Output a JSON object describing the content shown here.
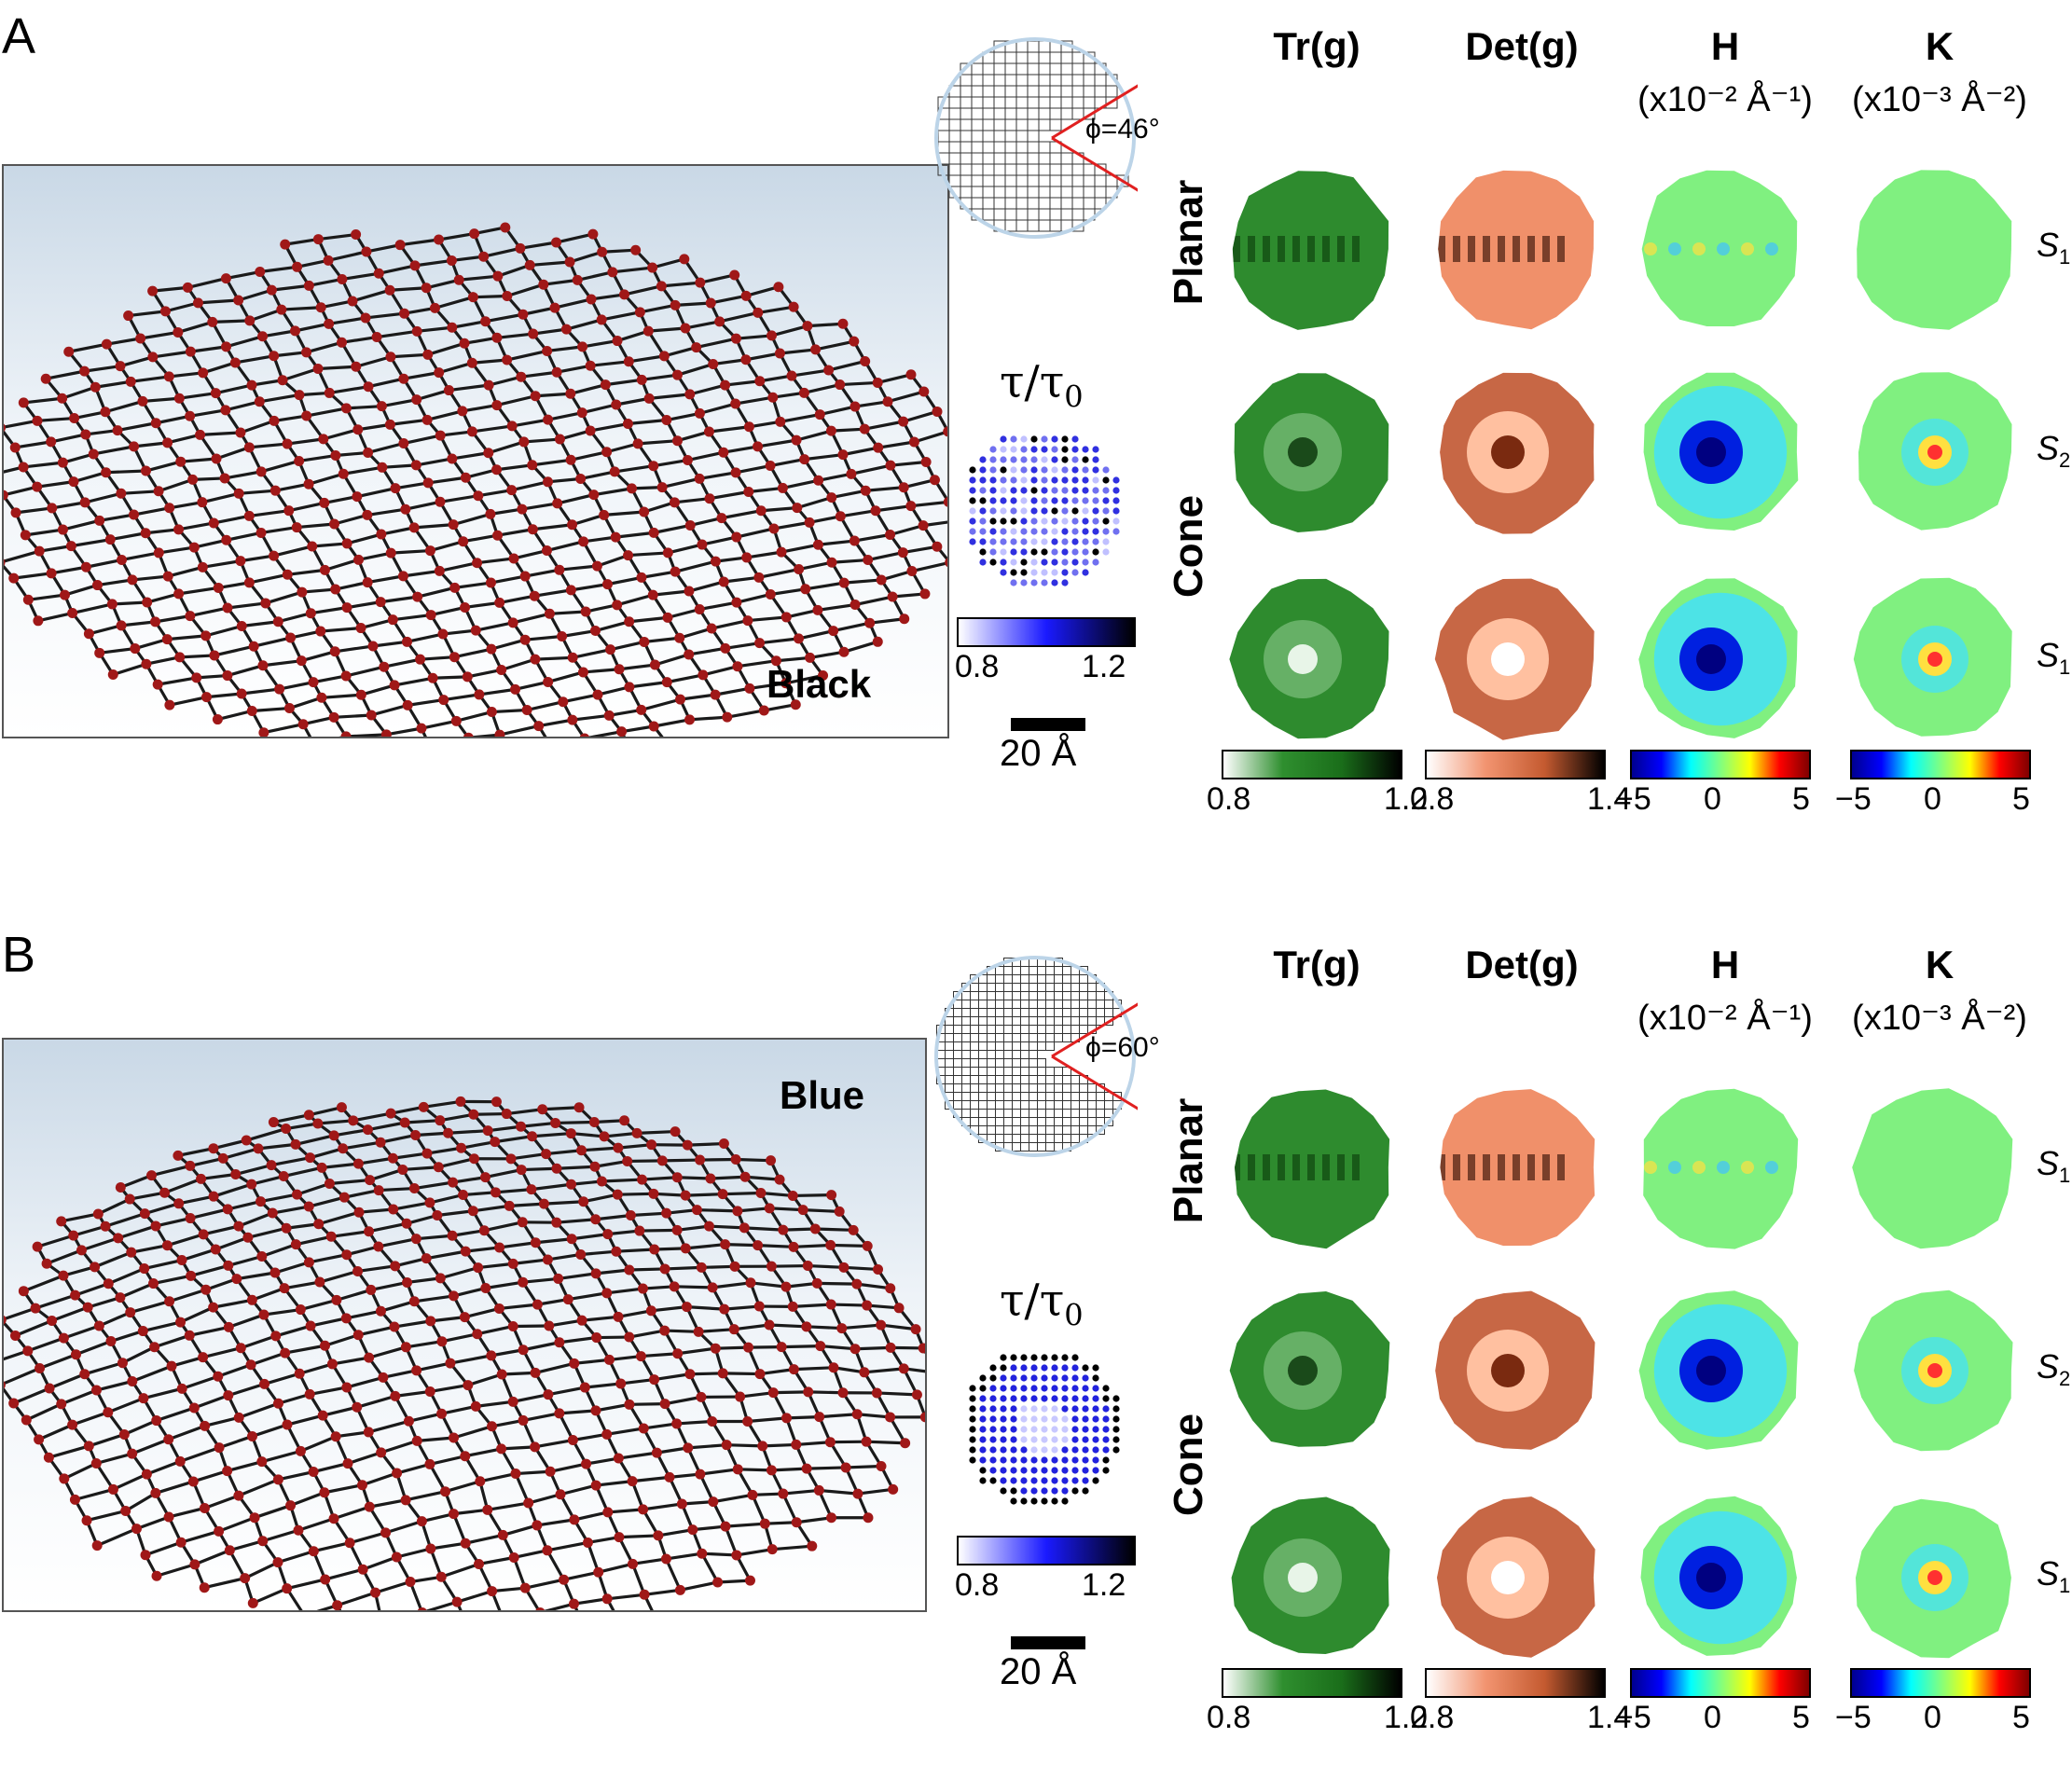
{
  "panels": [
    {
      "letter": "A",
      "material": "Black",
      "cone_angle": "ϕ=46°",
      "tau_label": "τ/τ",
      "tau_sub": "0",
      "tau_ticks": [
        "0.8",
        "1.2"
      ],
      "scale_label": "20 Å",
      "columns": [
        {
          "title": "Tr(g)",
          "unit": ""
        },
        {
          "title": "Det(g)",
          "unit": ""
        },
        {
          "title": "H",
          "unit": "(x10⁻² Å⁻¹)"
        },
        {
          "title": "K",
          "unit": "(x10⁻³ Å⁻²)"
        }
      ],
      "rows": [
        {
          "group": "Planar",
          "s": "S",
          "s_sub": "1"
        },
        {
          "group": "Cone",
          "s": "S",
          "s_sub": "2"
        },
        {
          "group": "Cone",
          "s": "S",
          "s_sub": "1"
        }
      ],
      "row_groups": [
        "Planar",
        "Cone"
      ],
      "colorbars": [
        {
          "ticks": [
            "0.8",
            "1.2"
          ],
          "colormap": "green"
        },
        {
          "ticks": [
            "0.8",
            "1.4"
          ],
          "colormap": "orange"
        },
        {
          "ticks": [
            "−5",
            "0",
            "5"
          ],
          "colormap": "jet"
        },
        {
          "ticks": [
            "−5",
            "0",
            "5"
          ],
          "colormap": "jet"
        }
      ]
    },
    {
      "letter": "B",
      "material": "Blue",
      "cone_angle": "ϕ=60°",
      "tau_label": "τ/τ",
      "tau_sub": "0",
      "tau_ticks": [
        "0.8",
        "1.2"
      ],
      "scale_label": "20 Å",
      "columns": [
        {
          "title": "Tr(g)",
          "unit": ""
        },
        {
          "title": "Det(g)",
          "unit": ""
        },
        {
          "title": "H",
          "unit": "(x10⁻² Å⁻¹)"
        },
        {
          "title": "K",
          "unit": "(x10⁻³ Å⁻²)"
        }
      ],
      "rows": [
        {
          "group": "Planar",
          "s": "S",
          "s_sub": "1"
        },
        {
          "group": "Cone",
          "s": "S",
          "s_sub": "2"
        },
        {
          "group": "Cone",
          "s": "S",
          "s_sub": "1"
        }
      ],
      "row_groups": [
        "Planar",
        "Cone"
      ],
      "colorbars": [
        {
          "ticks": [
            "0.8",
            "1.2"
          ],
          "colormap": "green"
        },
        {
          "ticks": [
            "0.8",
            "1.4"
          ],
          "colormap": "orange"
        },
        {
          "ticks": [
            "−5",
            "0",
            "5"
          ],
          "colormap": "jet"
        },
        {
          "ticks": [
            "−5",
            "0",
            "5"
          ],
          "colormap": "jet"
        }
      ]
    }
  ],
  "colors": {
    "bond": "#1a1a1a",
    "atom": "#a01818",
    "cut_line": "#e02020",
    "green_colormap": [
      "#ffffff",
      "#2f8f2f",
      "#1a6e1a",
      "#000000"
    ],
    "orange_colormap": [
      "#ffffff",
      "#f29470",
      "#c45a30",
      "#000000"
    ],
    "blue_colormap": [
      "#ffffff",
      "#1a1aff",
      "#000000"
    ],
    "jet_colormap": [
      "#00008f",
      "#0000ff",
      "#00ffff",
      "#80ff80",
      "#ffff00",
      "#ff0000",
      "#800000"
    ]
  }
}
